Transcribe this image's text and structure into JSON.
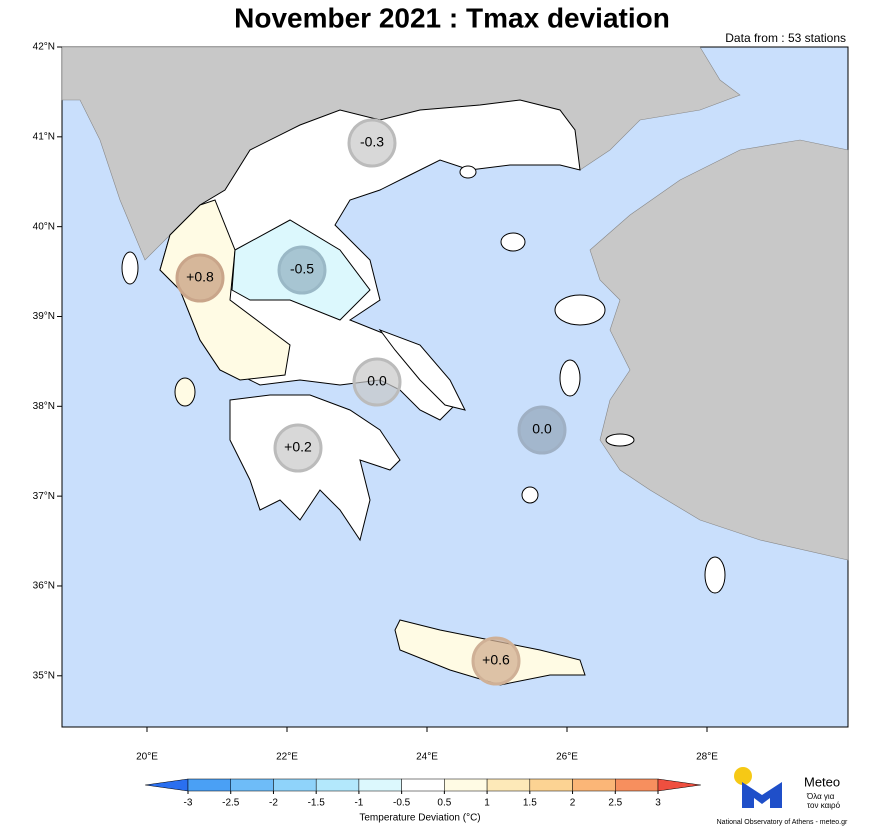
{
  "title": "November 2021 : Tmax deviation",
  "subtitle": "Data from : 53 stations",
  "map": {
    "lonlim": [
      18.786,
      30.014
    ],
    "latlim": [
      34.43,
      42
    ],
    "lat_ticks": [
      {
        "value": 42,
        "label": "42°N"
      },
      {
        "value": 41,
        "label": "41°N"
      },
      {
        "value": 40,
        "label": "40°N"
      },
      {
        "value": 39,
        "label": "39°N"
      },
      {
        "value": 38,
        "label": "38°N"
      },
      {
        "value": 37,
        "label": "37°N"
      },
      {
        "value": 36,
        "label": "36°N"
      },
      {
        "value": 35,
        "label": "35°N"
      }
    ],
    "lon_ticks": [
      {
        "value": 20,
        "label": "20°E"
      },
      {
        "value": 22,
        "label": "22°E"
      },
      {
        "value": 24,
        "label": "24°E"
      },
      {
        "value": 26,
        "label": "26°E"
      },
      {
        "value": 28,
        "label": "28°E"
      }
    ]
  },
  "regions": [
    {
      "label": "-0.3"
    },
    {
      "label": "+0.8"
    },
    {
      "label": "-0.5"
    },
    {
      "label": "0.0"
    },
    {
      "label": "+0.2"
    },
    {
      "label": "0.0"
    },
    {
      "label": "+0.6"
    }
  ],
  "colorbar": {
    "ticks": [
      -3,
      -2.5,
      -2,
      -1.5,
      -1,
      -0.5,
      0.5,
      1,
      1.5,
      2,
      2.5,
      3
    ],
    "colors": [
      "#2a6ff0",
      "#4aa0f5",
      "#6ebcf8",
      "#8fd3fa",
      "#b3e8fc",
      "#dcf8fd",
      "#ffffff",
      "#fffbe4",
      "#fde9b8",
      "#fcd393",
      "#fbb677",
      "#f78f5e",
      "#ef4f3f"
    ],
    "label": "Temperature Deviation (°C)"
  },
  "logo": {
    "name": "Meteo",
    "tagline_1": "Όλα για",
    "tagline_2": "τον καιρό",
    "credit": "National Observatory of Athens - meteo.gr"
  }
}
